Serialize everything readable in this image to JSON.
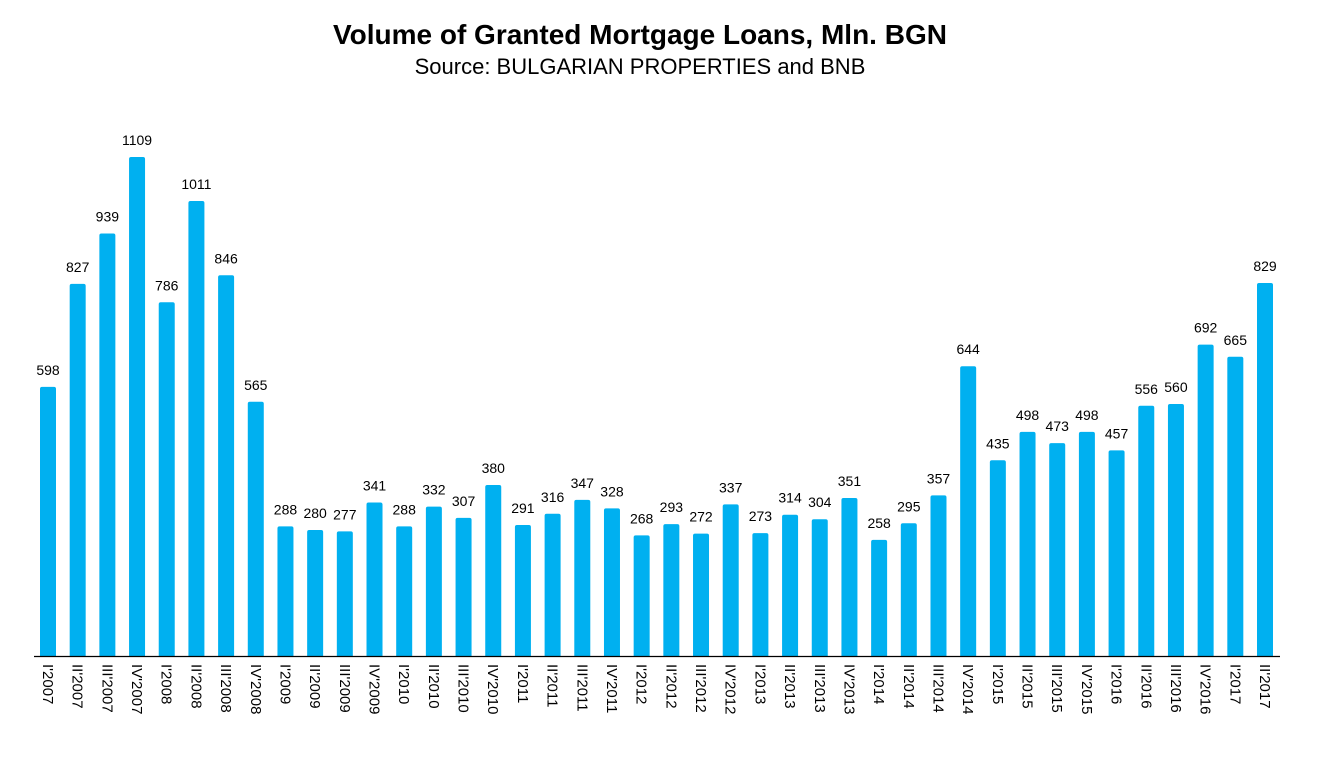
{
  "chart_data": {
    "type": "bar",
    "title": "Volume of Granted Mortgage Loans, Mln. BGN",
    "subtitle": "Source: BULGARIAN PROPERTIES and BNB",
    "xlabel": "",
    "ylabel": "",
    "ylim": [
      0,
      1200
    ],
    "grid": false,
    "legend": "none",
    "bar_color": "#00B0F0",
    "categories": [
      "I'2007",
      "II'2007",
      "III'2007",
      "IV'2007",
      "I'2008",
      "II'2008",
      "III'2008",
      "IV'2008",
      "I'2009",
      "II'2009",
      "III'2009",
      "IV'2009",
      "I'2010",
      "II'2010",
      "III'2010",
      "IV'2010",
      "I'2011",
      "II'2011",
      "III'2011",
      "IV'2011",
      "I'2012",
      "II'2012",
      "III'2012",
      "IV'2012",
      "I'2013",
      "II'2013",
      "III'2013",
      "IV'2013",
      "I'2014",
      "II'2014",
      "III'2014",
      "IV'2014",
      "I'2015",
      "II'2015",
      "III'2015",
      "IV'2015",
      "I'2016",
      "II'2016",
      "III'2016",
      "IV'2016",
      "I'2017",
      "II'2017"
    ],
    "values": [
      598,
      827,
      939,
      1109,
      786,
      1011,
      846,
      565,
      288,
      280,
      277,
      341,
      288,
      332,
      307,
      380,
      291,
      316,
      347,
      328,
      268,
      293,
      272,
      337,
      273,
      314,
      304,
      351,
      258,
      295,
      357,
      644,
      435,
      498,
      473,
      498,
      457,
      556,
      560,
      692,
      665,
      829
    ]
  }
}
